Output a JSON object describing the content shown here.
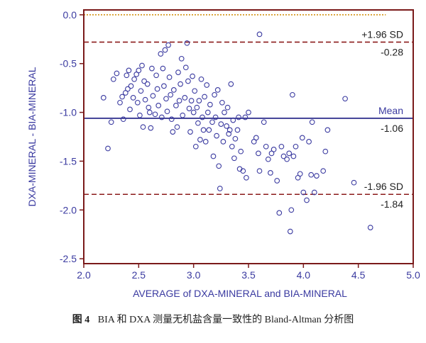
{
  "caption": {
    "label": "图 4",
    "text": "BIA 和 DXA 测量无机盐含量一致性的 Bland-Altman 分析图"
  },
  "colors": {
    "frame": "#7a1a1a",
    "axis_text": "#3a3aa0",
    "points": "#3a3aa0",
    "mean_line": "#2a2a8a",
    "limit_line": "#8b1a1a",
    "zero_line": "#d08a00"
  },
  "chart_data": {
    "type": "scatter",
    "xlabel": "AVERAGE of DXA-MINERAL and BIA-MINERAL",
    "ylabel": "DXA-MINERAL - BIA-MINERAL",
    "xlim": [
      2.0,
      5.0
    ],
    "ylim": [
      -2.55,
      0.05
    ],
    "xticks": [
      2.0,
      2.5,
      3.0,
      3.5,
      4.0,
      4.5,
      5.0
    ],
    "xtick_labels": [
      "2.0",
      "2.5",
      "3.0",
      "3.5",
      "4.0",
      "4.5",
      "5.0"
    ],
    "yticks": [
      0.0,
      -0.5,
      -1.0,
      -1.5,
      -2.0,
      -2.5
    ],
    "ytick_labels": [
      "0.0",
      "-0.5",
      "-1.0",
      "-1.5",
      "-2.0",
      "-2.5"
    ],
    "grid": false,
    "reference_lines": [
      {
        "id": "zero",
        "y": 0.0,
        "style": "dotted"
      },
      {
        "id": "upper",
        "y": -0.28,
        "style": "dashed",
        "label_above": "+1.96 SD",
        "label_below": "-0.28"
      },
      {
        "id": "mean",
        "y": -1.06,
        "style": "solid",
        "label_above": "Mean",
        "label_below": "-1.06"
      },
      {
        "id": "lower",
        "y": -1.84,
        "style": "dashed",
        "label_above": "-1.96 SD",
        "label_below": "-1.84"
      }
    ],
    "points": [
      [
        2.18,
        -0.85
      ],
      [
        2.22,
        -1.37
      ],
      [
        2.25,
        -1.1
      ],
      [
        2.27,
        -0.66
      ],
      [
        2.3,
        -0.6
      ],
      [
        2.33,
        -0.9
      ],
      [
        2.35,
        -0.84
      ],
      [
        2.36,
        -1.07
      ],
      [
        2.38,
        -0.8
      ],
      [
        2.39,
        -0.62
      ],
      [
        2.4,
        -0.76
      ],
      [
        2.41,
        -0.57
      ],
      [
        2.42,
        -0.97
      ],
      [
        2.43,
        -0.73
      ],
      [
        2.45,
        -0.85
      ],
      [
        2.46,
        -0.66
      ],
      [
        2.48,
        -0.61
      ],
      [
        2.49,
        -0.9
      ],
      [
        2.5,
        -0.57
      ],
      [
        2.51,
        -1.03
      ],
      [
        2.52,
        -0.78
      ],
      [
        2.53,
        -0.52
      ],
      [
        2.54,
        -1.15
      ],
      [
        2.55,
        -0.68
      ],
      [
        2.56,
        -0.87
      ],
      [
        2.58,
        -0.71
      ],
      [
        2.59,
        -0.95
      ],
      [
        2.6,
        -1.0
      ],
      [
        2.61,
        -1.16
      ],
      [
        2.62,
        -0.55
      ],
      [
        2.63,
        -0.83
      ],
      [
        2.65,
        -1.02
      ],
      [
        2.66,
        -0.62
      ],
      [
        2.67,
        -0.76
      ],
      [
        2.68,
        -0.93
      ],
      [
        2.7,
        -0.4
      ],
      [
        2.71,
        -1.05
      ],
      [
        2.72,
        -0.55
      ],
      [
        2.73,
        -0.73
      ],
      [
        2.74,
        -0.36
      ],
      [
        2.75,
        -0.86
      ],
      [
        2.76,
        -0.99
      ],
      [
        2.77,
        -0.31
      ],
      [
        2.78,
        -0.64
      ],
      [
        2.79,
        -0.82
      ],
      [
        2.8,
        -1.07
      ],
      [
        2.81,
        -1.2
      ],
      [
        2.82,
        -0.77
      ],
      [
        2.84,
        -0.93
      ],
      [
        2.85,
        -1.15
      ],
      [
        2.86,
        -0.59
      ],
      [
        2.87,
        -0.88
      ],
      [
        2.88,
        -0.71
      ],
      [
        2.89,
        -0.45
      ],
      [
        2.9,
        -1.03
      ],
      [
        2.92,
        -0.85
      ],
      [
        2.93,
        -0.54
      ],
      [
        2.94,
        -0.29
      ],
      [
        2.95,
        -0.68
      ],
      [
        2.96,
        -0.96
      ],
      [
        2.97,
        -1.2
      ],
      [
        2.98,
        -0.88
      ],
      [
        2.99,
        -0.63
      ],
      [
        3.0,
        -1.0
      ],
      [
        3.01,
        -0.78
      ],
      [
        3.02,
        -1.35
      ],
      [
        3.03,
        -0.95
      ],
      [
        3.04,
        -1.11
      ],
      [
        3.05,
        -0.88
      ],
      [
        3.06,
        -1.28
      ],
      [
        3.07,
        -0.66
      ],
      [
        3.08,
        -1.05
      ],
      [
        3.09,
        -1.18
      ],
      [
        3.1,
        -0.84
      ],
      [
        3.11,
        -1.3
      ],
      [
        3.12,
        -0.72
      ],
      [
        3.13,
        -1.0
      ],
      [
        3.14,
        -1.18
      ],
      [
        3.15,
        -0.92
      ],
      [
        3.17,
        -1.1
      ],
      [
        3.18,
        -1.45
      ],
      [
        3.19,
        -0.82
      ],
      [
        3.2,
        -1.05
      ],
      [
        3.21,
        -1.24
      ],
      [
        3.22,
        -0.77
      ],
      [
        3.23,
        -1.55
      ],
      [
        3.24,
        -1.78
      ],
      [
        3.25,
        -1.12
      ],
      [
        3.26,
        -0.9
      ],
      [
        3.27,
        -1.3
      ],
      [
        3.28,
        -1.0
      ],
      [
        3.3,
        -1.14
      ],
      [
        3.31,
        -0.95
      ],
      [
        3.32,
        -1.22
      ],
      [
        3.33,
        -1.18
      ],
      [
        3.34,
        -0.71
      ],
      [
        3.35,
        -1.35
      ],
      [
        3.36,
        -1.08
      ],
      [
        3.37,
        -1.47
      ],
      [
        3.38,
        -1.27
      ],
      [
        3.4,
        -1.18
      ],
      [
        3.41,
        -1.05
      ],
      [
        3.42,
        -1.58
      ],
      [
        3.43,
        -1.4
      ],
      [
        3.45,
        -1.6
      ],
      [
        3.47,
        -1.05
      ],
      [
        3.48,
        -1.67
      ],
      [
        3.5,
        -1.0
      ],
      [
        3.55,
        -1.3
      ],
      [
        3.57,
        -1.26
      ],
      [
        3.59,
        -1.42
      ],
      [
        3.6,
        -0.2
      ],
      [
        3.6,
        -1.6
      ],
      [
        3.64,
        -1.1
      ],
      [
        3.66,
        -1.35
      ],
      [
        3.68,
        -1.48
      ],
      [
        3.7,
        -1.62
      ],
      [
        3.71,
        -1.42
      ],
      [
        3.73,
        -1.38
      ],
      [
        3.76,
        -1.7
      ],
      [
        3.78,
        -2.03
      ],
      [
        3.8,
        -1.35
      ],
      [
        3.82,
        -1.45
      ],
      [
        3.85,
        -1.48
      ],
      [
        3.87,
        -1.42
      ],
      [
        3.88,
        -2.22
      ],
      [
        3.89,
        -2.0
      ],
      [
        3.9,
        -0.82
      ],
      [
        3.91,
        -1.45
      ],
      [
        3.93,
        -1.35
      ],
      [
        3.95,
        -1.67
      ],
      [
        3.97,
        -1.63
      ],
      [
        3.99,
        -1.26
      ],
      [
        4.0,
        -1.82
      ],
      [
        4.03,
        -1.9
      ],
      [
        4.05,
        -1.3
      ],
      [
        4.07,
        -1.64
      ],
      [
        4.08,
        -1.1
      ],
      [
        4.1,
        -1.82
      ],
      [
        4.12,
        -1.65
      ],
      [
        4.18,
        -1.6
      ],
      [
        4.2,
        -1.4
      ],
      [
        4.22,
        -1.18
      ],
      [
        4.38,
        -0.86
      ],
      [
        4.46,
        -1.72
      ],
      [
        4.61,
        -2.18
      ]
    ]
  }
}
